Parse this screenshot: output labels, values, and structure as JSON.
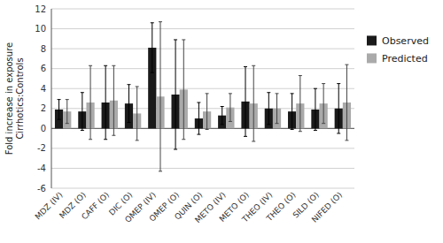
{
  "chart_data": {
    "type": "bar",
    "categories": [
      "MDZ (IV)",
      "MDZ (O)",
      "CAFF (O)",
      "DIC (O)",
      "OMEP (IV)",
      "OMEP (O)",
      "QUIN (O)",
      "METO (IV)",
      "METO (O)",
      "THEO (IV)",
      "THEO (O)",
      "SILD (O)",
      "NIFED (O)"
    ],
    "series": [
      {
        "name": "Observed",
        "color": "#1a1a1a",
        "values": [
          1.9,
          1.7,
          2.6,
          2.5,
          8.1,
          3.4,
          1.0,
          1.3,
          2.7,
          2.0,
          1.7,
          1.9,
          2.0
        ],
        "errors": [
          1.0,
          1.9,
          3.7,
          1.9,
          2.5,
          5.5,
          1.6,
          0.9,
          3.5,
          1.6,
          1.8,
          2.1,
          2.5
        ]
      },
      {
        "name": "Predicted",
        "color": "#aaaaaa",
        "values": [
          1.7,
          2.6,
          2.8,
          1.5,
          3.2,
          3.9,
          1.7,
          2.1,
          2.5,
          2.0,
          2.5,
          2.5,
          2.6
        ],
        "errors": [
          1.2,
          3.7,
          3.5,
          2.7,
          7.5,
          5.0,
          1.8,
          1.4,
          3.8,
          1.5,
          2.8,
          2.0,
          3.8
        ]
      }
    ],
    "ylabel": "Fold increase in exposure\nCirrhotics:Controls",
    "ylim": [
      -6,
      12
    ],
    "yticks": [
      -6,
      -4,
      -2,
      0,
      2,
      4,
      6,
      8,
      10,
      12
    ],
    "grid": true,
    "legend": "right"
  }
}
